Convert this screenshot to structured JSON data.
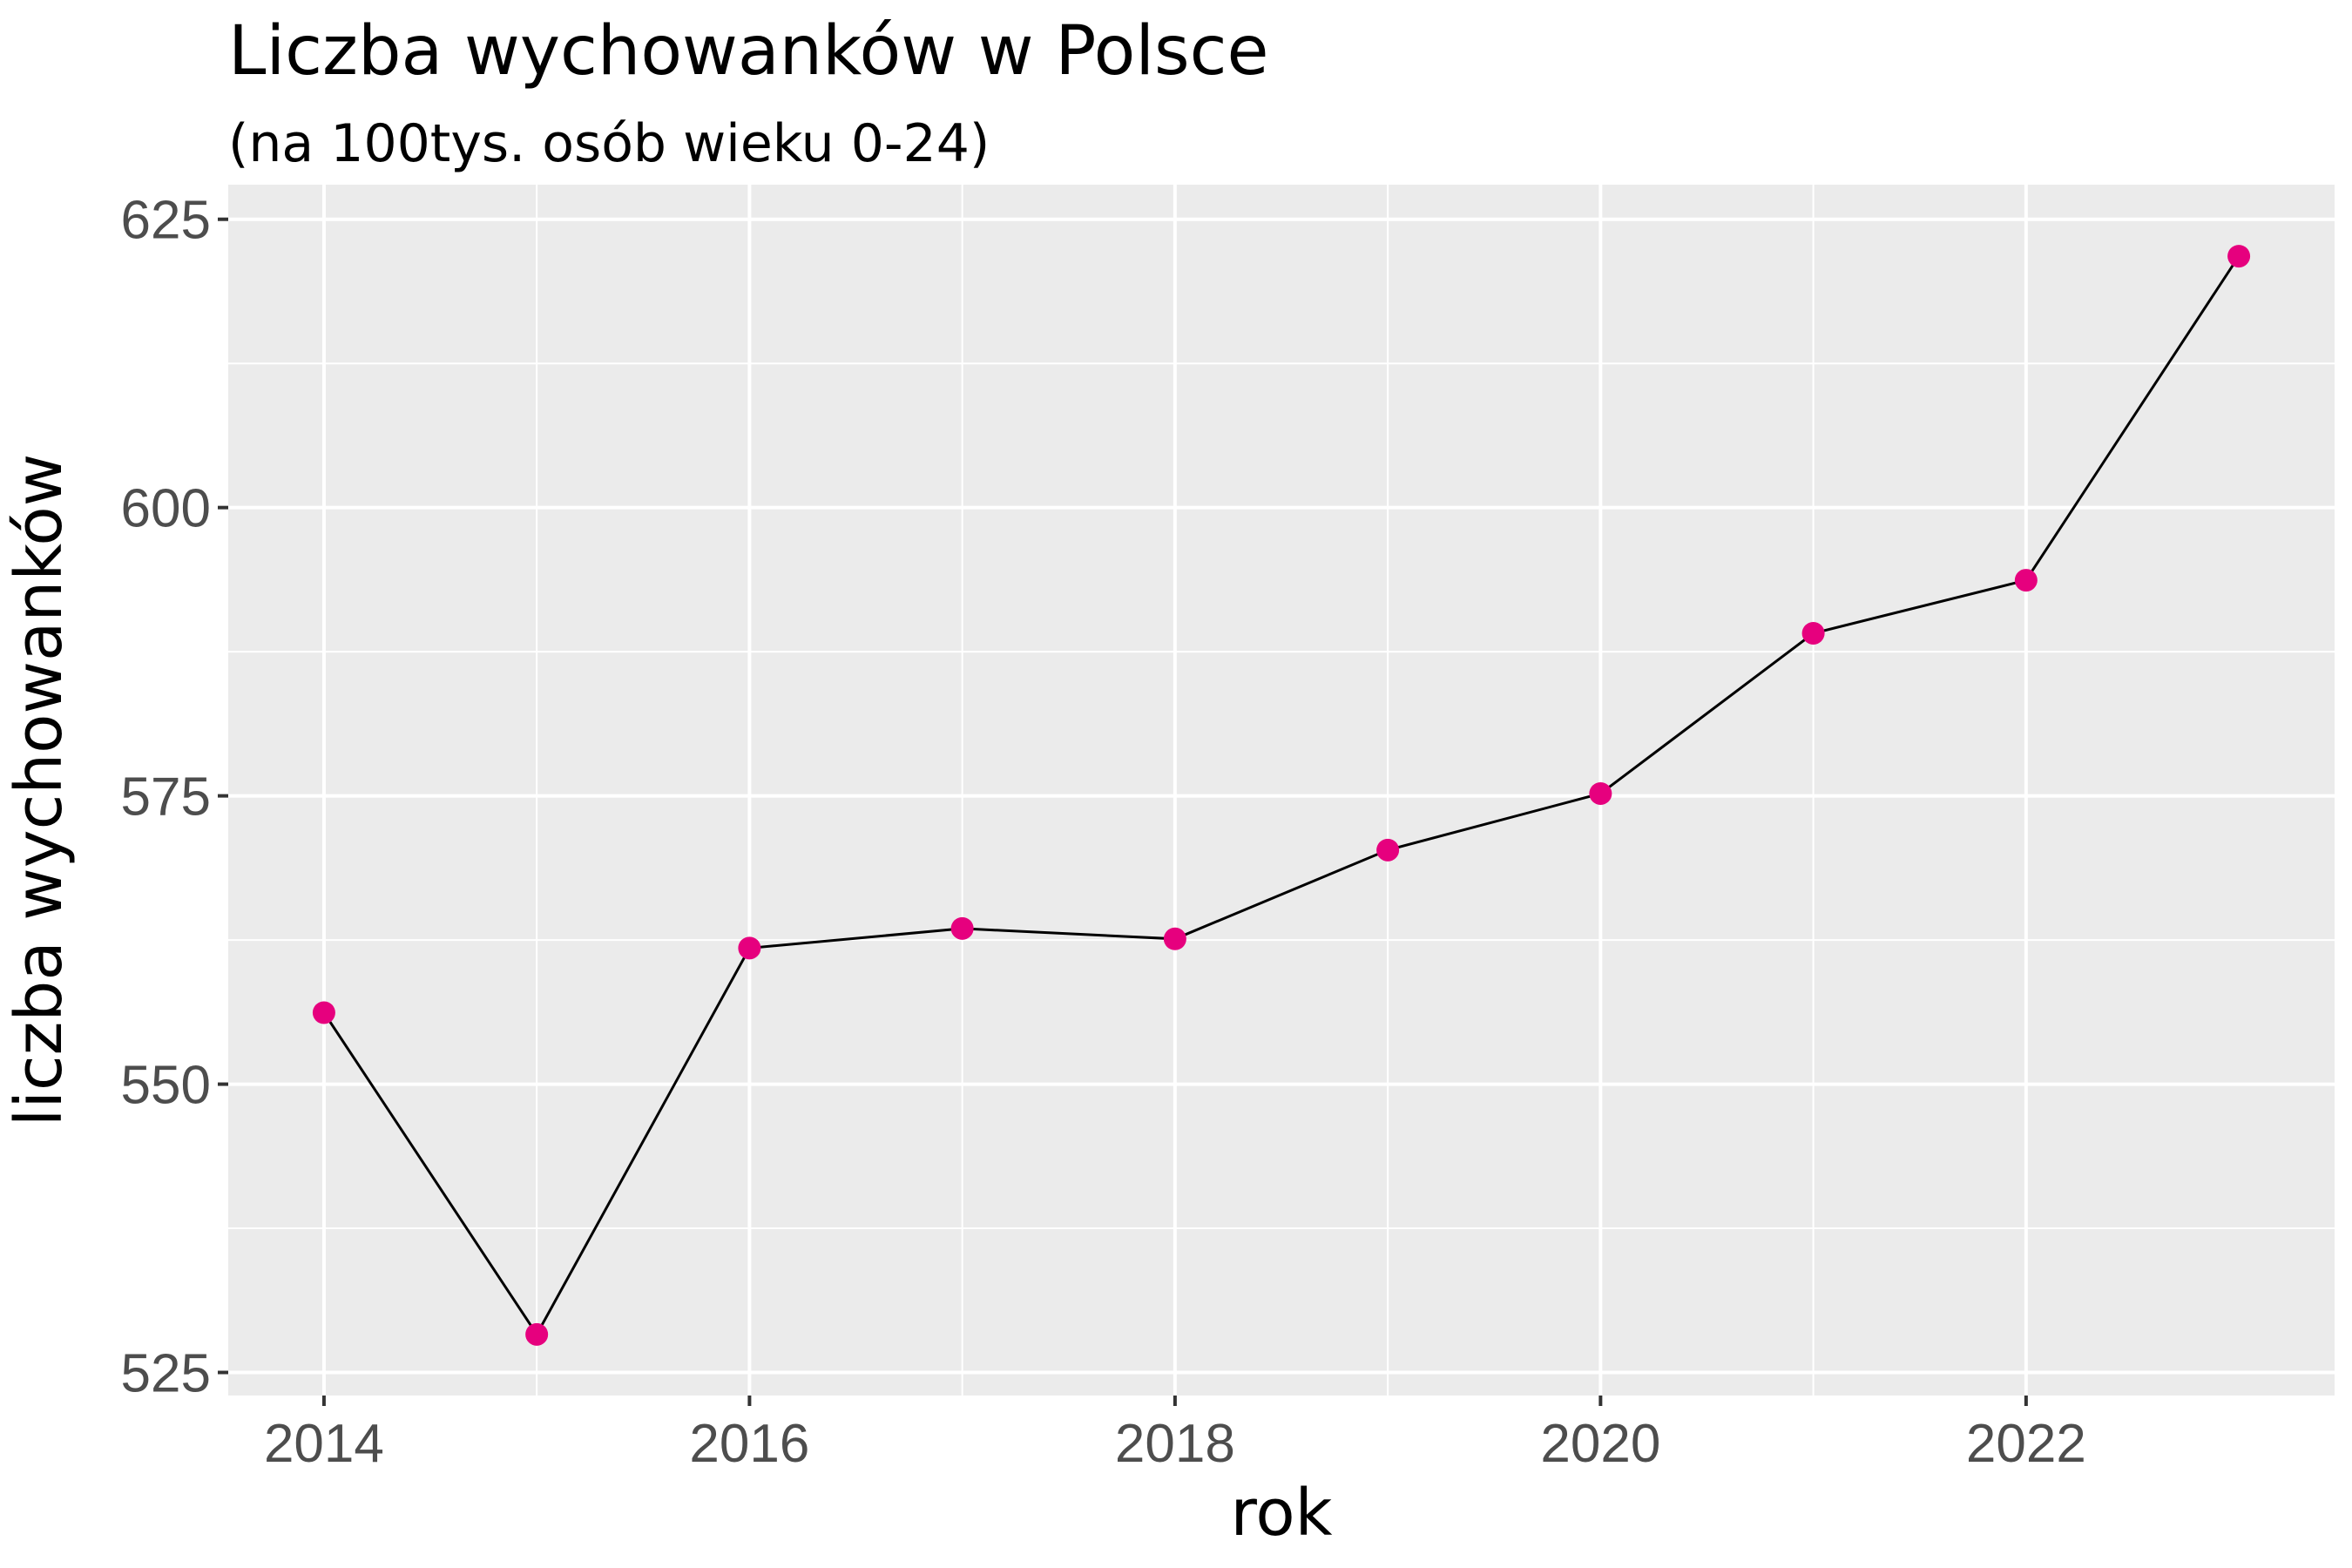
{
  "chart_data": {
    "type": "line",
    "title": "Liczba wychowanków w Polsce",
    "subtitle": "(na 100tys. osób wieku 0-24)",
    "xlabel": "rok",
    "ylabel": "liczba wychowanków",
    "x": [
      2014,
      2015,
      2016,
      2017,
      2018,
      2019,
      2020,
      2021,
      2022,
      2023
    ],
    "series": [
      {
        "values": [
          556.2,
          528.3,
          561.8,
          563.5,
          562.6,
          570.3,
          575.2,
          589.1,
          593.7,
          621.8
        ]
      }
    ],
    "xlim": [
      2013.55,
      2023.45
    ],
    "ylim": [
      523.0,
      628.0
    ],
    "x_ticks": [
      2014,
      2016,
      2018,
      2020,
      2022
    ],
    "y_ticks": [
      525,
      550,
      575,
      600,
      625
    ],
    "grid": true,
    "legend": "none",
    "colors": {
      "panel": "#ebebeb",
      "grid": "#ffffff",
      "line": "#000000",
      "point": "#e6007e"
    }
  }
}
